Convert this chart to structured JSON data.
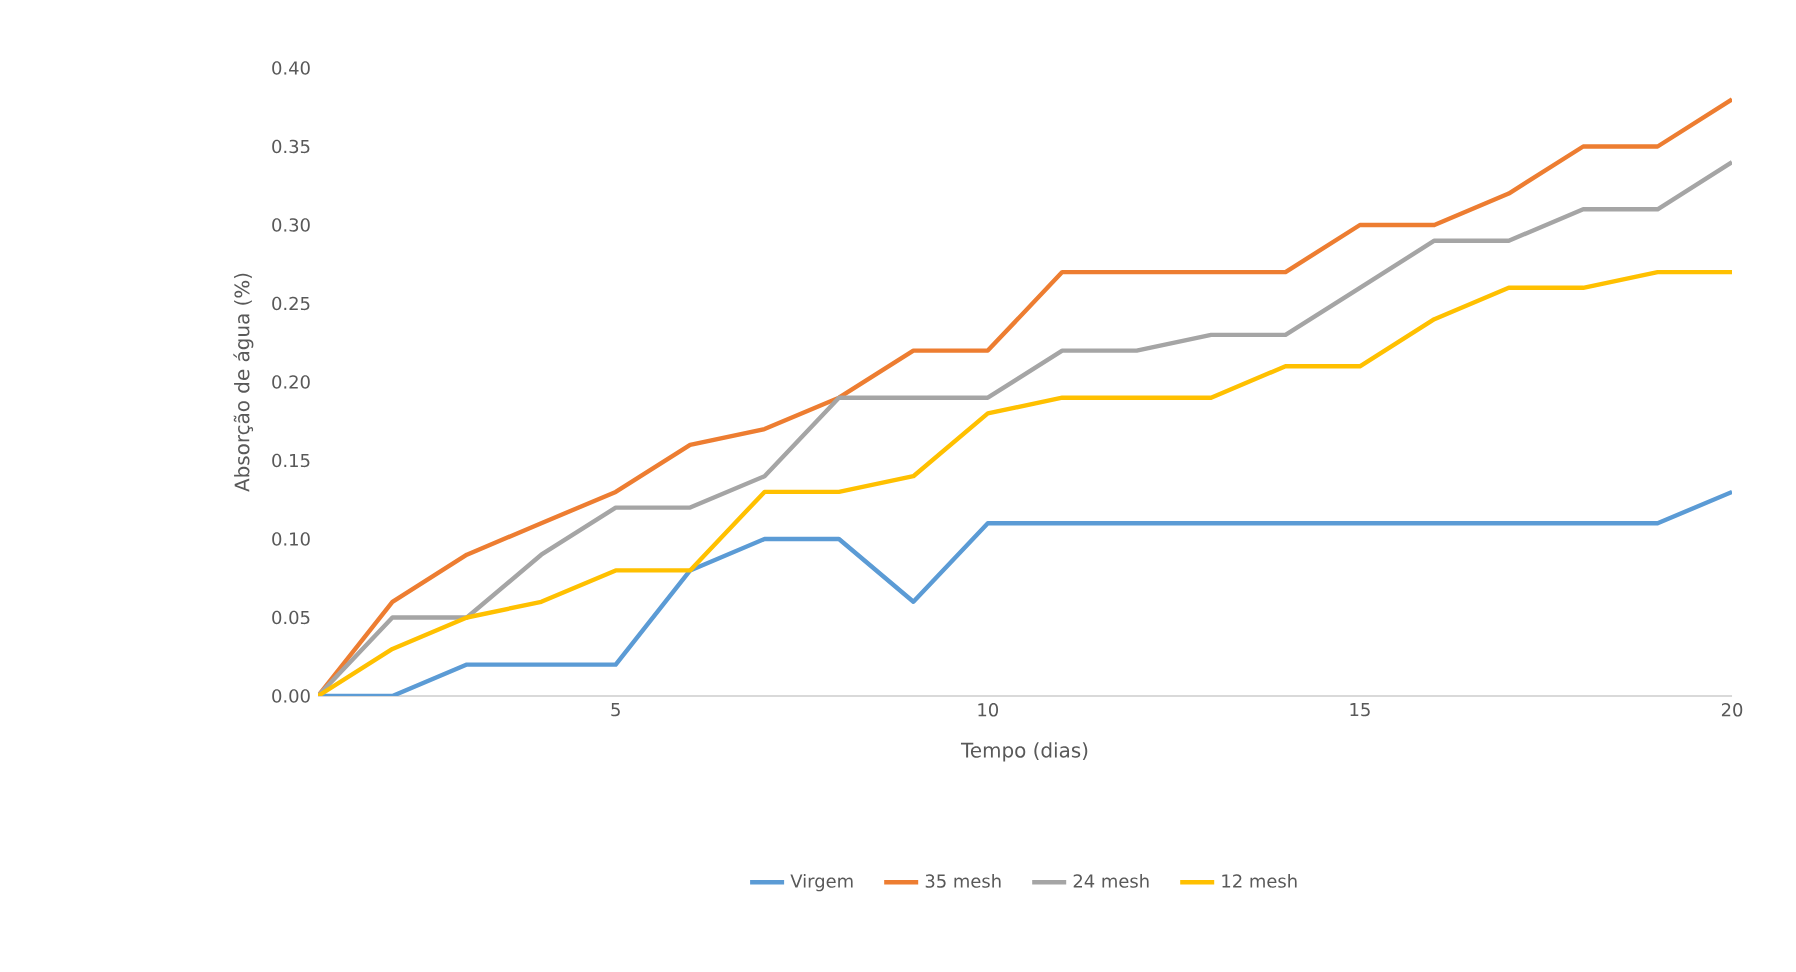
{
  "chart_data": {
    "type": "line",
    "xlabel": "Tempo (dias)",
    "ylabel": "Absorção de água (%)",
    "x": [
      1,
      2,
      3,
      4,
      5,
      6,
      7,
      8,
      9,
      10,
      11,
      12,
      13,
      14,
      15,
      16,
      17,
      18,
      19,
      20
    ],
    "series": [
      {
        "name": "Virgem",
        "color": "#5b9bd5",
        "values": [
          0,
          0,
          0.02,
          0.02,
          0.02,
          0.08,
          0.1,
          0.1,
          0.06,
          0.11,
          0.11,
          0.11,
          0.11,
          0.11,
          0.11,
          0.11,
          0.11,
          0.11,
          0.11,
          0.13
        ]
      },
      {
        "name": "35 mesh",
        "color": "#ed7d31",
        "values": [
          0,
          0.06,
          0.09,
          0.11,
          0.13,
          0.16,
          0.17,
          0.19,
          0.22,
          0.22,
          0.27,
          0.27,
          0.27,
          0.27,
          0.3,
          0.3,
          0.32,
          0.35,
          0.35,
          0.38
        ]
      },
      {
        "name": "24 mesh",
        "color": "#a5a5a5",
        "values": [
          0,
          0.05,
          0.05,
          0.09,
          0.12,
          0.12,
          0.14,
          0.19,
          0.19,
          0.19,
          0.22,
          0.22,
          0.23,
          0.23,
          0.26,
          0.29,
          0.29,
          0.31,
          0.31,
          0.34
        ]
      },
      {
        "name": "12 mesh",
        "color": "#ffc000",
        "values": [
          0,
          0.03,
          0.05,
          0.06,
          0.08,
          0.08,
          0.13,
          0.13,
          0.14,
          0.18,
          0.19,
          0.19,
          0.19,
          0.21,
          0.21,
          0.24,
          0.26,
          0.26,
          0.27,
          0.27
        ]
      }
    ],
    "xlim": [
      1,
      20
    ],
    "xticks": [
      5,
      10,
      15,
      20
    ],
    "ylim": [
      0,
      0.4
    ],
    "yticks": [
      {
        "value": 0,
        "label": "0.00"
      },
      {
        "value": 0.05,
        "label": "0.05"
      },
      {
        "value": 0.1,
        "label": "0.10"
      },
      {
        "value": 0.15,
        "label": "0.15"
      },
      {
        "value": 0.2,
        "label": "0.20"
      },
      {
        "value": 0.25,
        "label": "0.25"
      },
      {
        "value": 0.3,
        "label": "0.30"
      },
      {
        "value": 0.35,
        "label": "0.35"
      },
      {
        "value": 0.4,
        "label": "0.40"
      }
    ],
    "legend": "bottom",
    "grid": false,
    "marker": "none",
    "line_style": "solid"
  }
}
